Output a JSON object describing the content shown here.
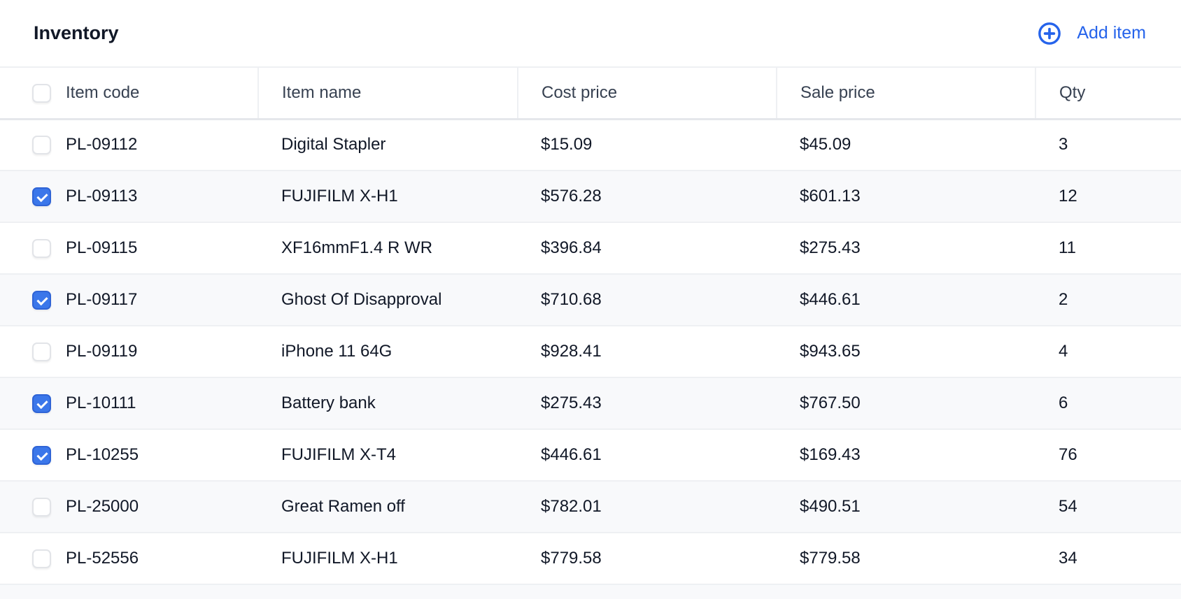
{
  "header": {
    "title": "Inventory",
    "add_label": "Add item",
    "add_icon": "plus-circle-icon",
    "accent": "#2563eb"
  },
  "columns": [
    "Item code",
    "Item name",
    "Cost price",
    "Sale price",
    "Qty"
  ],
  "header_checked": false,
  "rows": [
    {
      "checked": false,
      "code": "PL-09112",
      "name": "Digital Stapler",
      "cost": "$15.09",
      "sale": "$45.09",
      "qty": "3"
    },
    {
      "checked": true,
      "code": "PL-09113",
      "name": "FUJIFILM X-H1",
      "cost": "$576.28",
      "sale": "$601.13",
      "qty": "12"
    },
    {
      "checked": false,
      "code": "PL-09115",
      "name": "XF16mmF1.4 R WR",
      "cost": "$396.84",
      "sale": "$275.43",
      "qty": "11"
    },
    {
      "checked": true,
      "code": "PL-09117",
      "name": "Ghost Of Disapproval",
      "cost": "$710.68",
      "sale": "$446.61",
      "qty": "2"
    },
    {
      "checked": false,
      "code": "PL-09119",
      "name": "iPhone 11 64G",
      "cost": "$928.41",
      "sale": "$943.65",
      "qty": "4"
    },
    {
      "checked": true,
      "code": "PL-10111",
      "name": "Battery bank",
      "cost": "$275.43",
      "sale": "$767.50",
      "qty": "6"
    },
    {
      "checked": true,
      "code": "PL-10255",
      "name": "FUJIFILM X-T4",
      "cost": "$446.61",
      "sale": "$169.43",
      "qty": "76"
    },
    {
      "checked": false,
      "code": "PL-25000",
      "name": "Great Ramen off",
      "cost": "$782.01",
      "sale": "$490.51",
      "qty": "54"
    },
    {
      "checked": false,
      "code": "PL-52556",
      "name": "FUJIFILM X-H1",
      "cost": "$779.58",
      "sale": "$779.58",
      "qty": "34"
    }
  ]
}
